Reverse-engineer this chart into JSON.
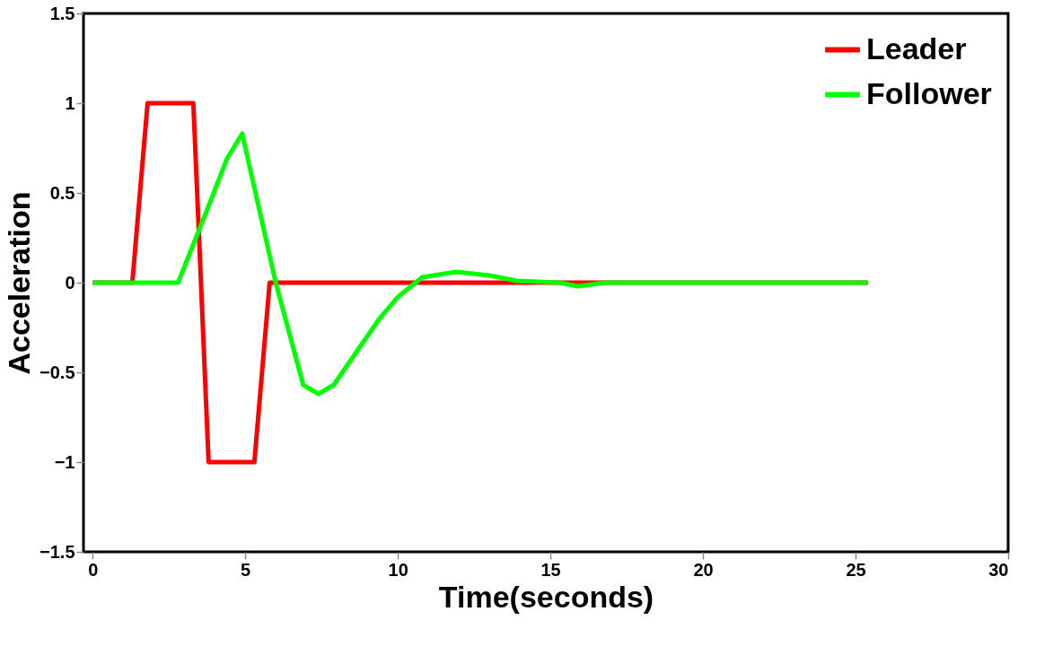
{
  "chart_data": {
    "type": "line",
    "xlabel": "Time(seconds)",
    "ylabel": "Acceleration",
    "xlim": [
      -0.3,
      30
    ],
    "xticks": [
      0,
      5,
      10,
      15,
      20,
      25,
      30
    ],
    "ylim": [
      -1.5,
      1.5
    ],
    "yticks": [
      -1.5,
      -1,
      -0.5,
      0,
      0.5,
      1,
      1.5
    ],
    "grid": false,
    "legend": "top right",
    "line_style": "solid",
    "marker": "none",
    "series": [
      {
        "name": "Leader",
        "color": "#ff0000",
        "x": [
          0,
          1.3,
          1.8,
          3.3,
          3.8,
          5.3,
          5.8,
          25.4
        ],
        "values": [
          0,
          0,
          1,
          1,
          -1,
          -1,
          0,
          0
        ]
      },
      {
        "name": "Follower",
        "color": "#00ff00",
        "x": [
          0,
          2.8,
          3.9,
          4.4,
          4.9,
          6.0,
          6.9,
          7.4,
          7.9,
          9.4,
          10.0,
          10.8,
          11.9,
          13.0,
          13.9,
          15.3,
          15.9,
          16.8,
          25.4
        ],
        "values": [
          0,
          0,
          0.47,
          0.69,
          0.83,
          0,
          -0.57,
          -0.62,
          -0.57,
          -0.2,
          -0.08,
          0.03,
          0.06,
          0.04,
          0.01,
          0,
          -0.02,
          0,
          0
        ]
      }
    ]
  }
}
